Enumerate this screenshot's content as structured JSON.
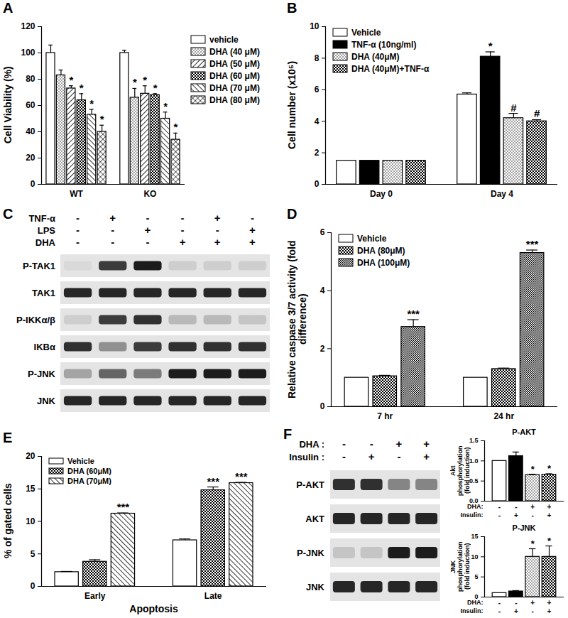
{
  "chart_data": [
    {
      "panel": "A",
      "type": "bar",
      "y_label": "Cell Viability (%)",
      "categories": [
        "WT",
        "KO"
      ],
      "ylim": [
        0,
        120
      ],
      "yticks": [
        0,
        20,
        40,
        60,
        80,
        100,
        120
      ],
      "legend": "right",
      "series": [
        {
          "name": "vehicle",
          "color": "#ffffff",
          "values": [
            100,
            100
          ],
          "errors": [
            6,
            2
          ],
          "annotations": [
            null,
            null
          ]
        },
        {
          "name": "DHA (40 μM)",
          "color": "#ffffff",
          "values": [
            83,
            66
          ],
          "errors": [
            4,
            7
          ],
          "annotations": [
            null,
            "*"
          ]
        },
        {
          "name": "DHA (50 μM)",
          "color": "#ffffff",
          "values": [
            73,
            69
          ],
          "errors": [
            2,
            6
          ],
          "annotations": [
            "*",
            "*"
          ]
        },
        {
          "name": "DHA (60 μM)",
          "color": "#ffffff",
          "values": [
            64,
            68
          ],
          "errors": [
            5,
            1
          ],
          "annotations": [
            "*",
            "*"
          ]
        },
        {
          "name": "DHA (70 μM)",
          "color": "#ffffff",
          "values": [
            53,
            50
          ],
          "errors": [
            4,
            5
          ],
          "annotations": [
            "*",
            "*"
          ]
        },
        {
          "name": "DHA (80 μM)",
          "color": "#ffffff",
          "values": [
            40,
            34
          ],
          "errors": [
            5,
            5
          ],
          "annotations": [
            "*",
            "*"
          ]
        }
      ]
    },
    {
      "panel": "B",
      "type": "bar",
      "y_label": "Cell number (x10⁵)",
      "categories": [
        "Day 0",
        "Day 4"
      ],
      "ylim": [
        0,
        10
      ],
      "yticks": [
        0,
        2,
        4,
        6,
        8,
        10
      ],
      "legend": "top-left",
      "series": [
        {
          "name": "Vehicle",
          "color": "#ffffff",
          "values": [
            1.5,
            5.7
          ],
          "errors": [
            0,
            0.1
          ],
          "annotations": [
            null,
            null
          ]
        },
        {
          "name": "TNF-α (10ng/ml)",
          "color": "#000000",
          "values": [
            1.5,
            8.1
          ],
          "errors": [
            0,
            0.3
          ],
          "annotations": [
            null,
            "*"
          ]
        },
        {
          "name": "DHA (40μM)",
          "color": "#ffffff",
          "values": [
            1.5,
            4.2
          ],
          "errors": [
            0,
            0.3
          ],
          "annotations": [
            null,
            "#"
          ]
        },
        {
          "name": "DHA (40μM)+TNF-α",
          "color": "#ffffff",
          "values": [
            1.5,
            4.0
          ],
          "errors": [
            0,
            0.1
          ],
          "annotations": [
            null,
            "#"
          ]
        }
      ]
    },
    {
      "panel": "C",
      "type": "blot",
      "conditions": [
        {
          "label": "TNF-α",
          "values": [
            "-",
            "+",
            "-",
            "-",
            "+",
            "-"
          ]
        },
        {
          "label": "LPS",
          "values": [
            "-",
            "-",
            "+",
            "-",
            "-",
            "+"
          ]
        },
        {
          "label": "DHA",
          "values": [
            "-",
            "-",
            "-",
            "+",
            "+",
            "+"
          ]
        }
      ],
      "rows": [
        {
          "label": "P-TAK1",
          "intensity": [
            0.05,
            0.8,
            0.95,
            0.1,
            0.1,
            0.1
          ]
        },
        {
          "label": "TAK1",
          "intensity": [
            0.9,
            0.9,
            0.9,
            0.9,
            0.9,
            0.9
          ]
        },
        {
          "label": "P-IKKα/β",
          "intensity": [
            0.1,
            0.8,
            0.85,
            0.2,
            0.2,
            0.15
          ]
        },
        {
          "label": "IKBα",
          "intensity": [
            0.85,
            0.4,
            0.8,
            0.85,
            0.85,
            0.85
          ]
        },
        {
          "label": "P-JNK",
          "intensity": [
            0.3,
            0.6,
            0.5,
            0.95,
            0.95,
            0.95
          ]
        },
        {
          "label": "JNK",
          "intensity": [
            0.9,
            0.9,
            0.9,
            0.9,
            0.9,
            0.9
          ]
        }
      ]
    },
    {
      "panel": "D",
      "type": "bar",
      "y_label": "Relative caspase 3/7 activity (fold difference)",
      "categories": [
        "7 hr",
        "24 hr"
      ],
      "ylim": [
        0,
        6
      ],
      "yticks": [
        0,
        2,
        4,
        6
      ],
      "legend": "top-left",
      "series": [
        {
          "name": "Vehicle",
          "color": "#ffffff",
          "values": [
            1,
            1
          ],
          "errors": [
            0,
            0
          ],
          "annotations": [
            null,
            null
          ]
        },
        {
          "name": "DHA (80μM)",
          "color": "#ffffff",
          "values": [
            1.05,
            1.3
          ],
          "errors": [
            0.03,
            0.03
          ],
          "annotations": [
            null,
            null
          ]
        },
        {
          "name": "DHA (100μM)",
          "color": "#ffffff",
          "values": [
            2.75,
            5.3
          ],
          "errors": [
            0.25,
            0.1
          ],
          "annotations": [
            "***",
            "***"
          ]
        }
      ]
    },
    {
      "panel": "E",
      "type": "bar",
      "y_label": "% of gated cells",
      "x_label": "Apoptosis",
      "categories": [
        "Early",
        "Late"
      ],
      "ylim": [
        0,
        20
      ],
      "yticks": [
        0,
        5,
        10,
        15,
        20
      ],
      "legend": "top-left",
      "series": [
        {
          "name": "Vehicle",
          "color": "#ffffff",
          "values": [
            2.2,
            7.1
          ],
          "errors": [
            0.1,
            0.2
          ],
          "annotations": [
            null,
            null
          ]
        },
        {
          "name": "DHA (60μM)",
          "color": "#ffffff",
          "values": [
            3.8,
            14.8
          ],
          "errors": [
            0.3,
            0.5
          ],
          "annotations": [
            null,
            "***"
          ]
        },
        {
          "name": "DHA (70μM)",
          "color": "#ffffff",
          "values": [
            11.2,
            15.9
          ],
          "errors": [
            0.1,
            0.1
          ],
          "annotations": [
            "***",
            "***"
          ]
        }
      ]
    },
    {
      "panel": "F",
      "type": "blot",
      "conditions": [
        {
          "label": "DHA :",
          "values": [
            "-",
            "-",
            "+",
            "+"
          ]
        },
        {
          "label": "Insulin :",
          "values": [
            "-",
            "+",
            "-",
            "+"
          ]
        }
      ],
      "rows": [
        {
          "label": "P-AKT",
          "intensity": [
            0.85,
            0.85,
            0.45,
            0.45
          ]
        },
        {
          "label": "AKT",
          "intensity": [
            0.9,
            0.9,
            0.9,
            0.9
          ]
        },
        {
          "label": "P-JNK",
          "intensity": [
            0.15,
            0.15,
            0.95,
            0.95
          ]
        },
        {
          "label": "JNK",
          "intensity": [
            0.9,
            0.9,
            0.9,
            0.9
          ]
        }
      ]
    },
    {
      "title": "P-AKT",
      "type": "bar",
      "y_label": "Akt phosphorylation (fold induction)",
      "categories": [
        null,
        null,
        null,
        null
      ],
      "ylim": [
        0,
        1.5
      ],
      "yticks": [
        {
          "value": 0,
          "label": "0.0"
        },
        0.5,
        {
          "value": 1,
          "label": "1.0"
        },
        1.5
      ],
      "values": [
        1,
        1.12,
        0.65,
        0.66
      ],
      "errors": [
        0,
        0.1,
        0.02,
        0.02
      ],
      "colors": [
        "#ffffff",
        "#000000",
        "#ffffff",
        "#ffffff"
      ],
      "annotations": [
        null,
        null,
        "*",
        "*"
      ],
      "conditions": [
        {
          "label": "DHA:",
          "values": [
            "-",
            "-",
            "+",
            "+"
          ]
        },
        {
          "label": "Insulin:",
          "values": [
            "-",
            "+",
            "-",
            "+"
          ]
        }
      ]
    },
    {
      "title": "P-JNK",
      "type": "bar",
      "y_label": "JNK phosphorylation (fold induction)",
      "categories": [
        null,
        null,
        null,
        null
      ],
      "ylim": [
        0,
        15
      ],
      "yticks": [
        0,
        5,
        10,
        15
      ],
      "values": [
        1,
        1.4,
        10,
        10
      ],
      "errors": [
        0,
        0.2,
        2,
        2.7
      ],
      "colors": [
        "#ffffff",
        "#000000",
        "#ffffff",
        "#ffffff"
      ],
      "annotations": [
        null,
        null,
        "*",
        "*"
      ],
      "conditions": [
        {
          "label": "DHA:",
          "values": [
            "-",
            "-",
            "+",
            "+"
          ]
        },
        {
          "label": "Insulin:",
          "values": [
            "-",
            "+",
            "-",
            "+"
          ]
        }
      ]
    }
  ]
}
